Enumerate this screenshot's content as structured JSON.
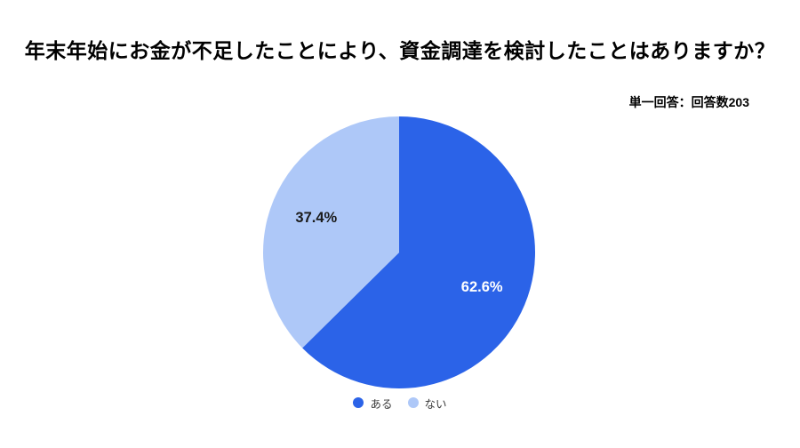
{
  "header": {
    "title": "年末年始にお金が不足したことにより、資金調達を検討したことはありますか？",
    "subtitle": "単一回答：回答数203"
  },
  "chart_data": {
    "type": "pie",
    "title": "年末年始にお金が不足したことにより、資金調達を検討したことはありますか？",
    "annotation": "単一回答：回答数203",
    "labels": [
      "ある",
      "ない"
    ],
    "values": [
      62.6,
      37.4
    ],
    "value_labels": [
      "62.6%",
      "37.4%"
    ],
    "colors": [
      "#2B63E8",
      "#AEC8F8"
    ],
    "value_label_colors": [
      "#ffffff",
      "#1a1a1a"
    ],
    "start_angle_deg": 0,
    "direction": "clockwise",
    "legend_position": "bottom"
  }
}
